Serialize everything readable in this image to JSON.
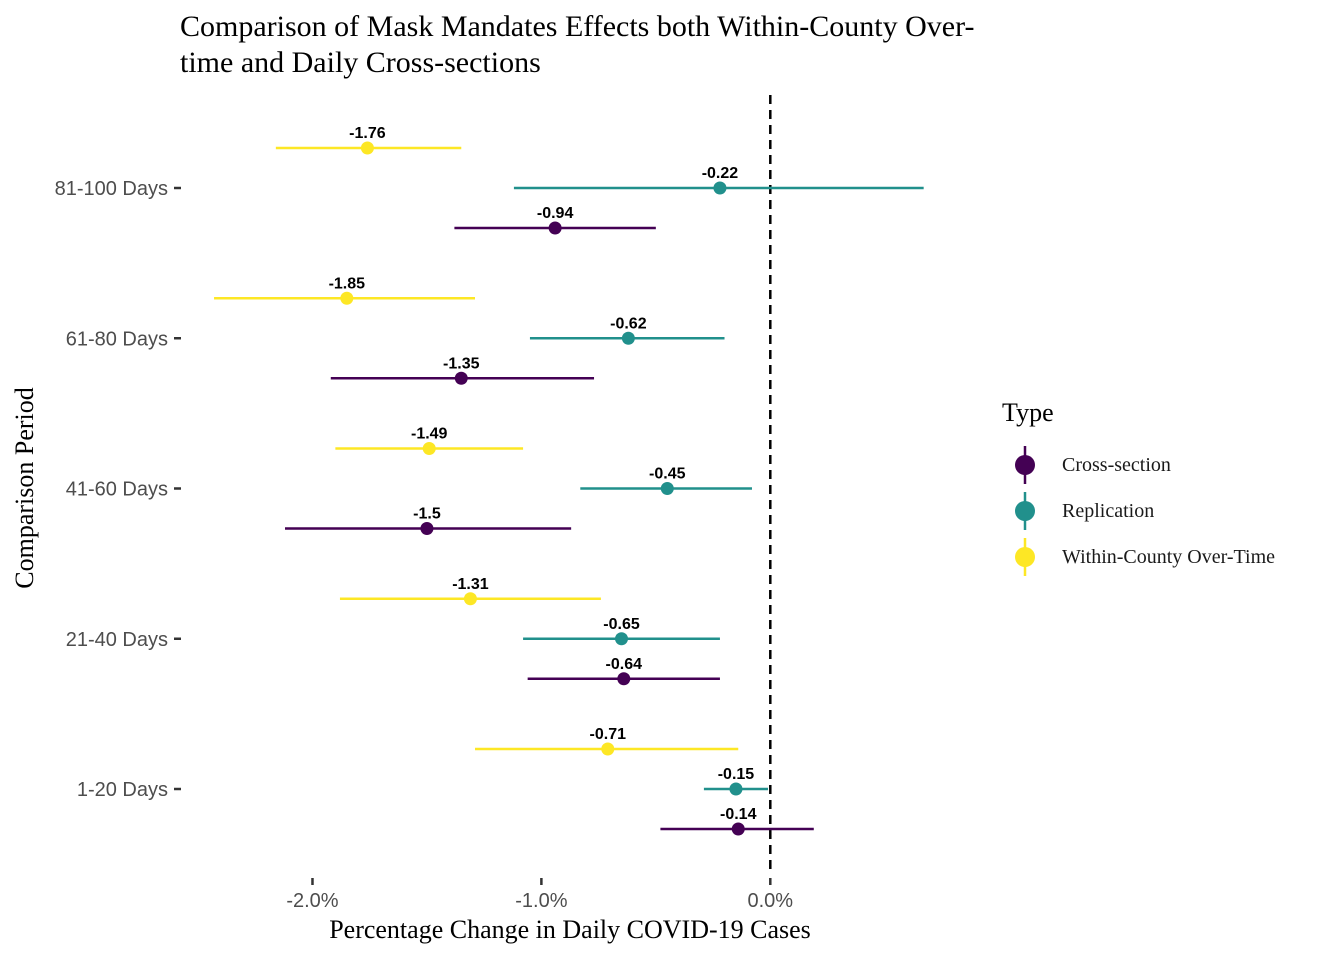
{
  "chart_data": {
    "type": "dot-range",
    "title_lines": [
      "Comparison of Mask Mandates Effects both Within-County Over-",
      "time and Daily Cross-sections"
    ],
    "xlabel": "Percentage Change in Daily COVID-19 Cases",
    "ylabel": "Comparison Period",
    "x_ticks": [
      {
        "value": -2.0,
        "label": "-2.0%"
      },
      {
        "value": -1.0,
        "label": "-1.0%"
      },
      {
        "value": 0.0,
        "label": "0.0%"
      }
    ],
    "xlim": [
      -2.57,
      0.82
    ],
    "categories": [
      "1-20 Days",
      "21-40 Days",
      "41-60 Days",
      "61-80 Days",
      "81-100 Days"
    ],
    "reference_line": {
      "x": 0.0,
      "style": "dashed"
    },
    "grid": false,
    "legend": {
      "title": "Type",
      "position": "right"
    },
    "series": [
      {
        "name": "Cross-section",
        "color": "#440154",
        "points": [
          {
            "category": "1-20 Days",
            "value": -0.14,
            "low": -0.48,
            "high": 0.19,
            "label": "-0.14"
          },
          {
            "category": "21-40 Days",
            "value": -0.64,
            "low": -1.06,
            "high": -0.22,
            "label": "-0.64"
          },
          {
            "category": "41-60 Days",
            "value": -1.5,
            "low": -2.12,
            "high": -0.87,
            "label": "-1.5"
          },
          {
            "category": "61-80 Days",
            "value": -1.35,
            "low": -1.92,
            "high": -0.77,
            "label": "-1.35"
          },
          {
            "category": "81-100 Days",
            "value": -0.94,
            "low": -1.38,
            "high": -0.5,
            "label": "-0.94"
          }
        ]
      },
      {
        "name": "Replication",
        "color": "#21908C",
        "points": [
          {
            "category": "1-20 Days",
            "value": -0.15,
            "low": -0.29,
            "high": -0.01,
            "label": "-0.15"
          },
          {
            "category": "21-40 Days",
            "value": -0.65,
            "low": -1.08,
            "high": -0.22,
            "label": "-0.65"
          },
          {
            "category": "41-60 Days",
            "value": -0.45,
            "low": -0.83,
            "high": -0.08,
            "label": "-0.45"
          },
          {
            "category": "61-80 Days",
            "value": -0.62,
            "low": -1.05,
            "high": -0.2,
            "label": "-0.62"
          },
          {
            "category": "81-100 Days",
            "value": -0.22,
            "low": -1.12,
            "high": 0.67,
            "label": "-0.22"
          }
        ]
      },
      {
        "name": "Within-County Over-Time",
        "color": "#FDE725",
        "points": [
          {
            "category": "1-20 Days",
            "value": -0.71,
            "low": -1.29,
            "high": -0.14,
            "label": "-0.71"
          },
          {
            "category": "21-40 Days",
            "value": -1.31,
            "low": -1.88,
            "high": -0.74,
            "label": "-1.31"
          },
          {
            "category": "41-60 Days",
            "value": -1.49,
            "low": -1.9,
            "high": -1.08,
            "label": "-1.49"
          },
          {
            "category": "61-80 Days",
            "value": -1.85,
            "low": -2.43,
            "high": -1.29,
            "label": "-1.85"
          },
          {
            "category": "81-100 Days",
            "value": -1.76,
            "low": -2.16,
            "high": -1.35,
            "label": "-1.76"
          }
        ]
      }
    ]
  }
}
